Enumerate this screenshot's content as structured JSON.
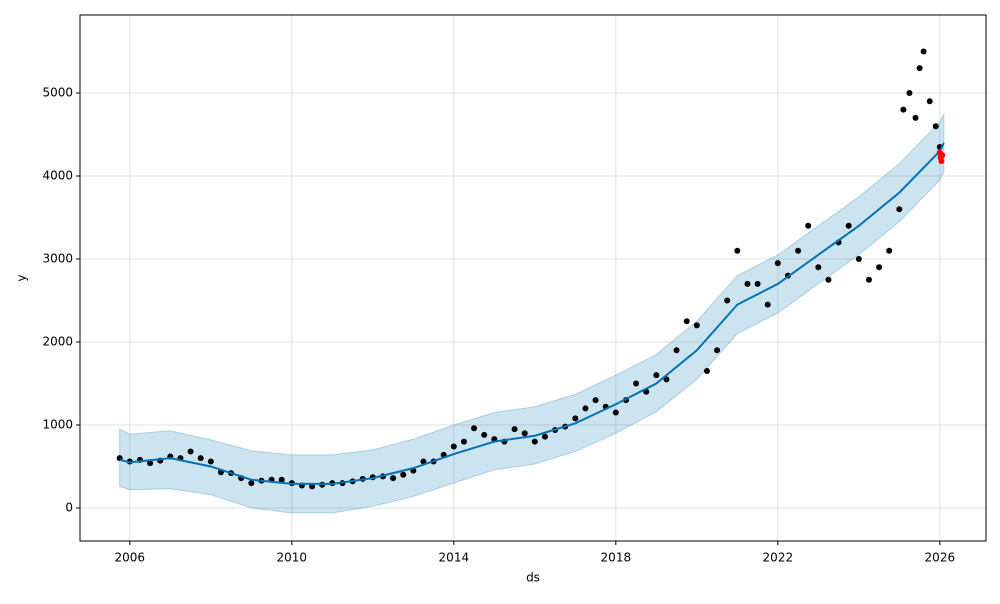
{
  "chart_data": {
    "type": "forecast",
    "xlabel": "ds",
    "ylabel": "y",
    "xlim": [
      2004.77,
      2027.14
    ],
    "ylim": [
      -398,
      5940
    ],
    "xticks": [
      2006,
      2010,
      2014,
      2018,
      2022,
      2026
    ],
    "yticks": [
      0,
      1000,
      2000,
      3000,
      4000,
      5000
    ],
    "grid": true,
    "forecast": {
      "color": "#0072B2",
      "band_color": "#0072B2",
      "x": [
        2005.75,
        2006,
        2007,
        2008,
        2009,
        2010,
        2011,
        2012,
        2013,
        2014,
        2015,
        2016,
        2017,
        2018,
        2019,
        2020,
        2021,
        2022,
        2023,
        2024,
        2025,
        2026,
        2026.1
      ],
      "values": [
        580,
        550,
        600,
        500,
        340,
        290,
        290,
        360,
        480,
        650,
        800,
        870,
        1020,
        1250,
        1500,
        1900,
        2450,
        2700,
        3050,
        3400,
        3800,
        4300,
        4400
      ],
      "upper": [
        950,
        890,
        930,
        820,
        690,
        640,
        640,
        700,
        830,
        1000,
        1150,
        1220,
        1370,
        1600,
        1850,
        2250,
        2800,
        3050,
        3400,
        3750,
        4150,
        4650,
        4750
      ],
      "lower": [
        260,
        220,
        230,
        160,
        0,
        -60,
        -60,
        20,
        140,
        300,
        460,
        530,
        680,
        900,
        1160,
        1550,
        2100,
        2350,
        2700,
        3050,
        3450,
        3950,
        4050
      ]
    },
    "observed": {
      "color": "#000000",
      "x": [
        2005.75,
        2006,
        2006.25,
        2006.5,
        2006.75,
        2007,
        2007.25,
        2007.5,
        2007.75,
        2008,
        2008.25,
        2008.5,
        2008.75,
        2009,
        2009.25,
        2009.5,
        2009.75,
        2010,
        2010.25,
        2010.5,
        2010.75,
        2011,
        2011.25,
        2011.5,
        2011.75,
        2012,
        2012.25,
        2012.5,
        2012.75,
        2013,
        2013.25,
        2013.5,
        2013.75,
        2014,
        2014.25,
        2014.5,
        2014.75,
        2015,
        2015.25,
        2015.5,
        2015.75,
        2016,
        2016.25,
        2016.5,
        2016.75,
        2017,
        2017.25,
        2017.5,
        2017.75,
        2018,
        2018.25,
        2018.5,
        2018.75,
        2019,
        2019.25,
        2019.5,
        2019.75,
        2020,
        2020.25,
        2020.5,
        2020.75,
        2021,
        2021.25,
        2021.5,
        2021.75,
        2022,
        2022.25,
        2022.5,
        2022.75,
        2023,
        2023.25,
        2023.5,
        2023.75,
        2024,
        2024.25,
        2024.5,
        2024.75,
        2025,
        2025.1,
        2025.25,
        2025.4,
        2025.5,
        2025.6,
        2025.75,
        2025.9,
        2026
      ],
      "values": [
        600,
        560,
        580,
        540,
        570,
        620,
        600,
        680,
        600,
        560,
        430,
        420,
        360,
        300,
        330,
        340,
        340,
        300,
        270,
        260,
        280,
        300,
        300,
        320,
        350,
        370,
        380,
        360,
        400,
        450,
        560,
        560,
        640,
        740,
        800,
        960,
        880,
        830,
        800,
        950,
        900,
        800,
        860,
        940,
        980,
        1080,
        1200,
        1300,
        1220,
        1150,
        1300,
        1500,
        1400,
        1600,
        1550,
        1900,
        2250,
        2200,
        1650,
        1900,
        2500,
        3100,
        2700,
        2700,
        2450,
        2950,
        2800,
        3100,
        3400,
        2900,
        2750,
        3200,
        3400,
        3000,
        2750,
        2900,
        3100,
        3600,
        4800,
        5000,
        4700,
        5300,
        5500,
        4900,
        4600,
        4350
      ]
    },
    "highlighted": {
      "color": "#ff0000",
      "x": [
        2026,
        2026.02,
        2026.04,
        2026.06
      ],
      "values": [
        4280,
        4220,
        4180,
        4250
      ]
    }
  }
}
